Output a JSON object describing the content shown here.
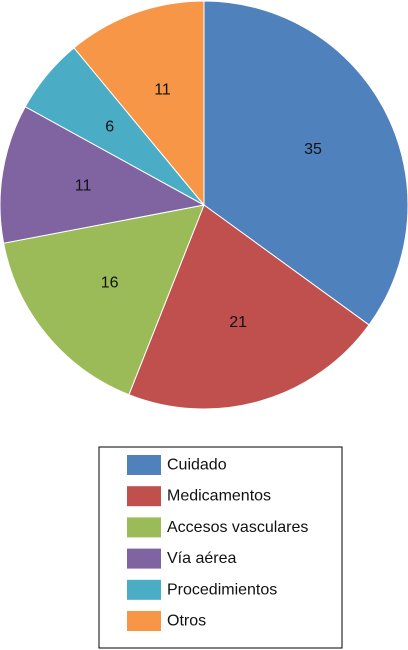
{
  "chart_data": {
    "type": "pie",
    "categories": [
      "Cuidado",
      "Medicamentos",
      "Accesos vasculares",
      "Vía aérea",
      "Procedimientos",
      "Otros"
    ],
    "values": [
      35,
      21,
      16,
      11,
      6,
      11
    ],
    "data_labels": [
      "35",
      "21",
      "16",
      "11",
      "6",
      "11"
    ],
    "colors": [
      "#4f81bd",
      "#c0504d",
      "#9bbb59",
      "#8064a2",
      "#4bacc6",
      "#f79646"
    ],
    "start_angle_deg": 0,
    "direction": "clockwise",
    "legend_position": "bottom"
  }
}
